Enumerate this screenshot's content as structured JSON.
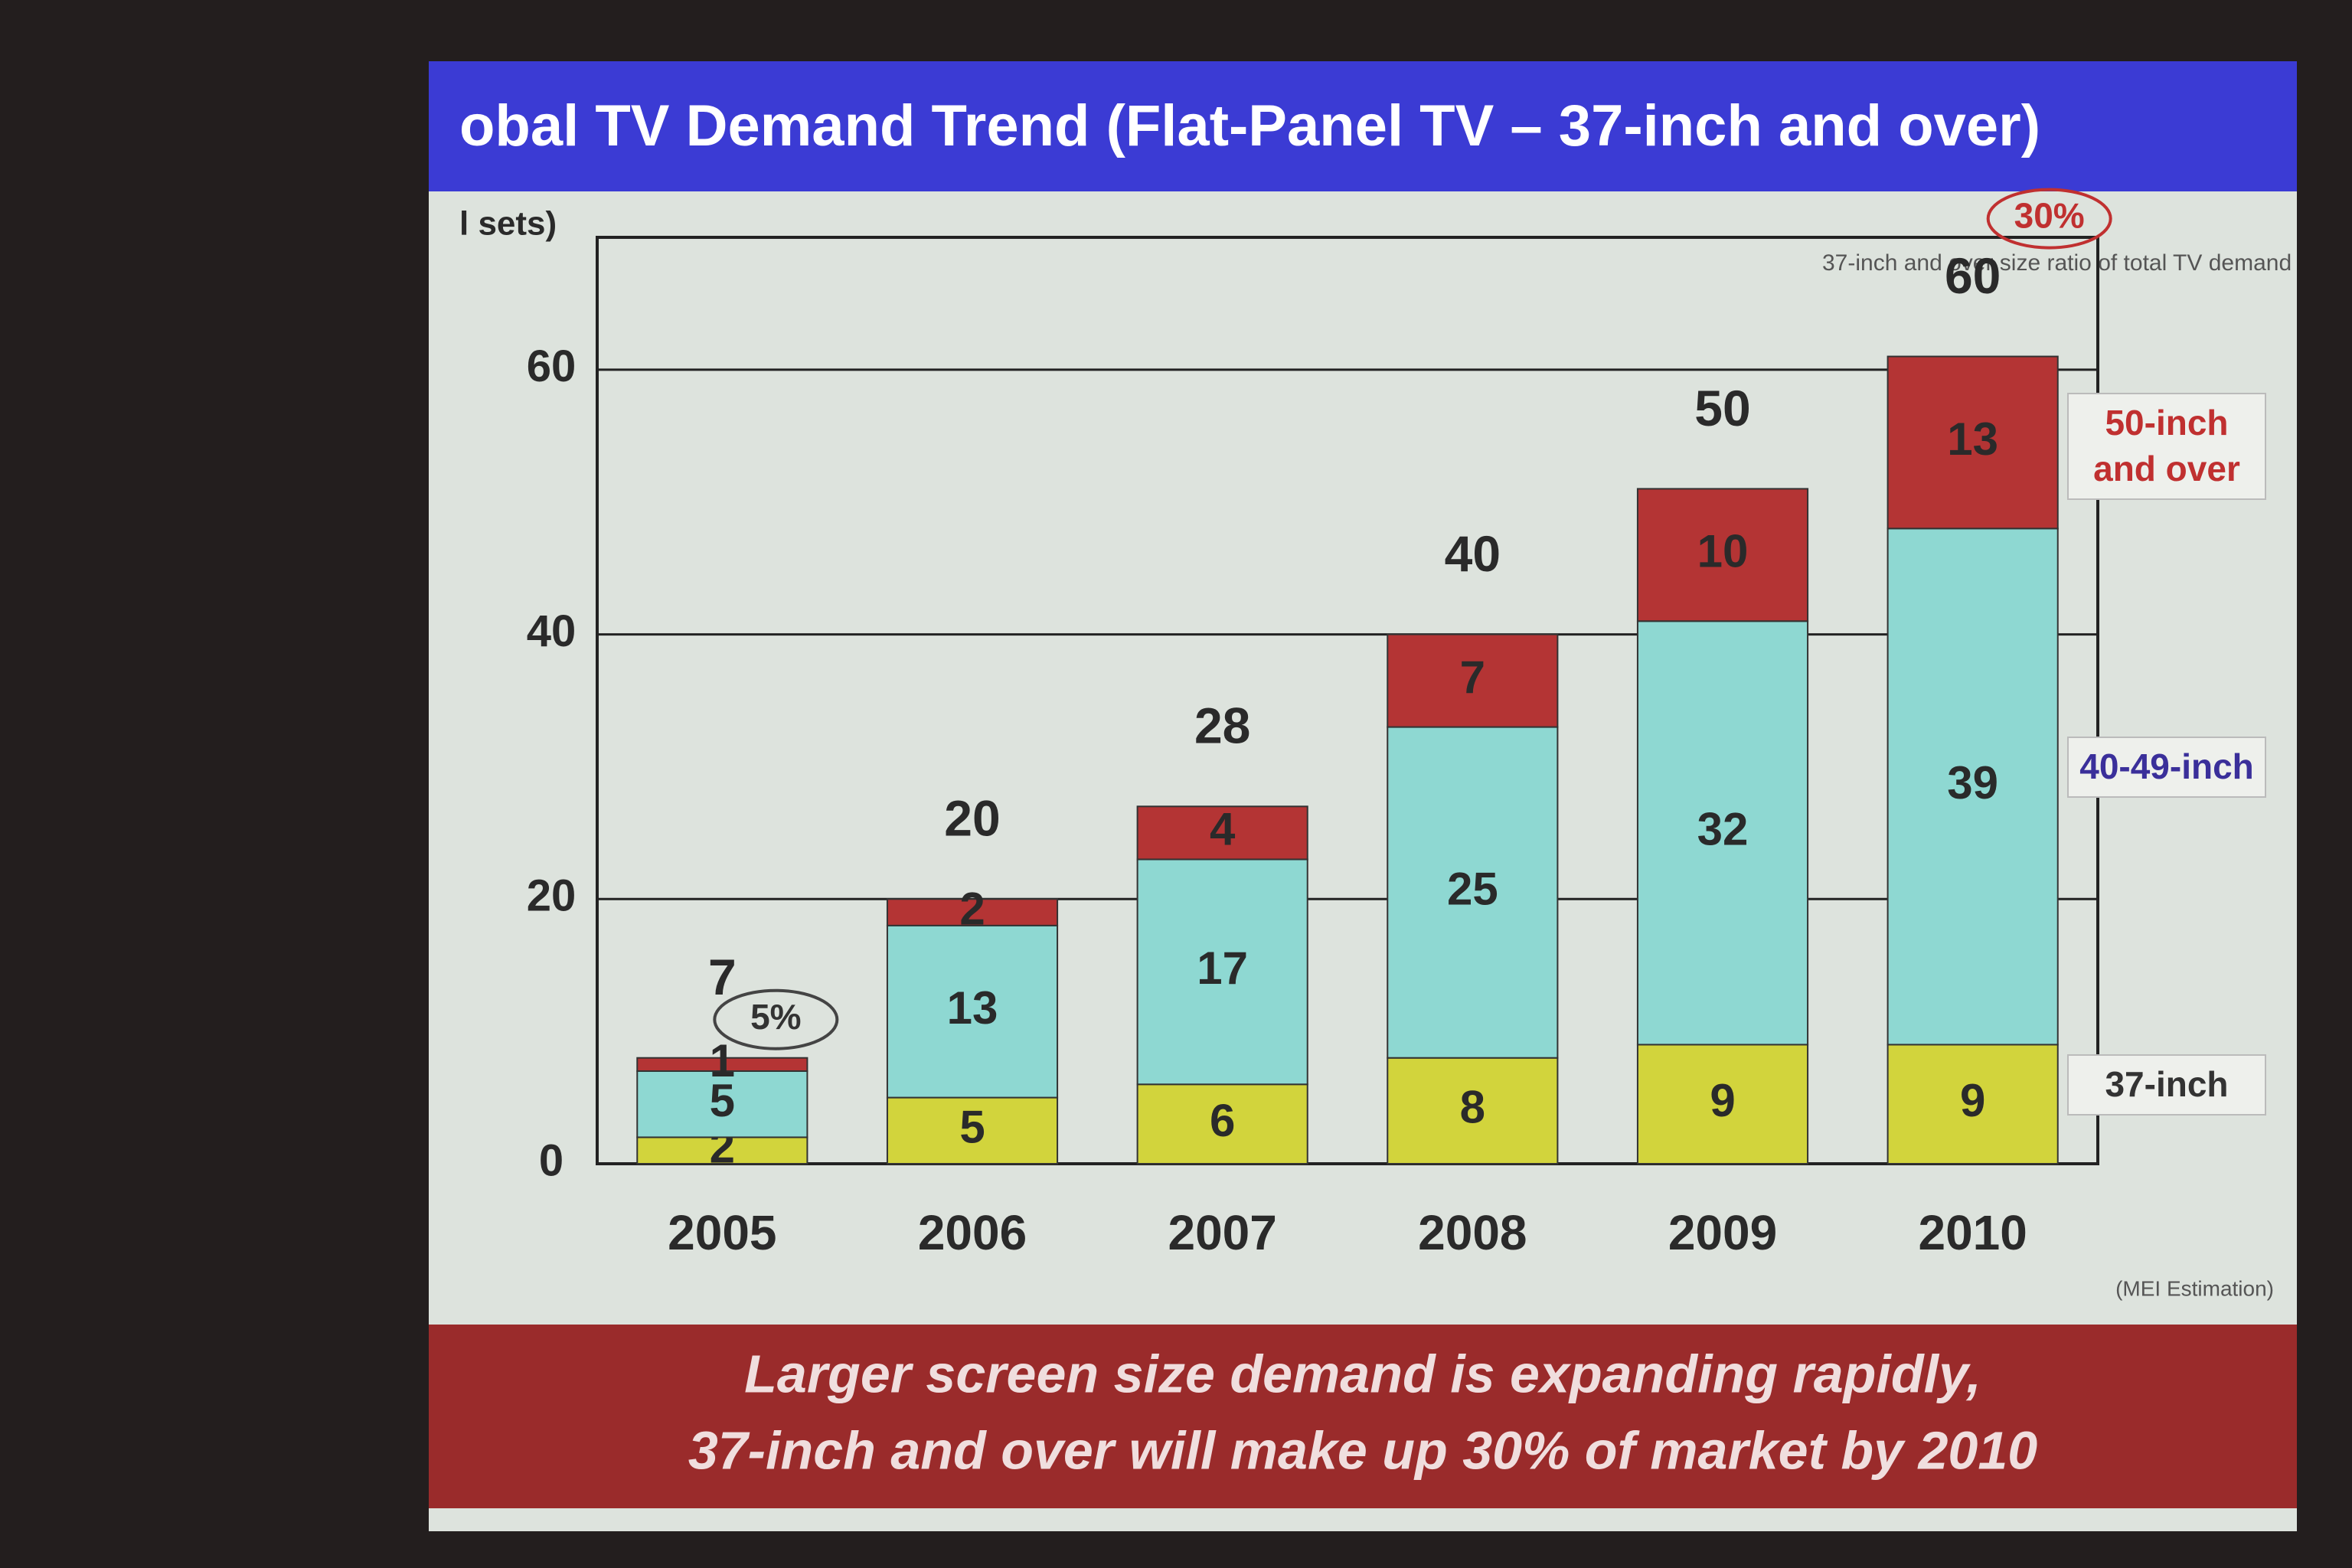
{
  "chart_data": {
    "type": "bar",
    "stacked": true,
    "title": "obal TV Demand Trend (Flat-Panel TV – 37-inch and over)",
    "ylabel": "l sets)",
    "note": "37-inch and over size ratio of total TV demand",
    "source": "(MEI Estimation)",
    "caption_lines": [
      "Larger screen size demand is expanding rapidly,",
      "37-inch and over will make up 30% of market by 2010"
    ],
    "categories": [
      "2005",
      "2006",
      "2007",
      "2008",
      "2009",
      "2010"
    ],
    "series": [
      {
        "name": "37-inch",
        "color": "#d2d43c",
        "values": [
          2,
          5,
          6,
          8,
          9,
          9
        ]
      },
      {
        "name": "40-49-inch",
        "color": "#8ed8d2",
        "values": [
          5,
          13,
          17,
          25,
          32,
          39
        ]
      },
      {
        "name": "50-inch and over",
        "color": "#b43434",
        "values": [
          1,
          2,
          4,
          7,
          10,
          13
        ]
      }
    ],
    "totals": [
      7,
      20,
      28,
      40,
      50,
      60
    ],
    "annotations": [
      {
        "text": "5%",
        "category": 0
      },
      {
        "text": "30%",
        "category": 5
      }
    ],
    "ylim": [
      0,
      70
    ],
    "yticks": [
      0,
      20,
      40,
      60
    ],
    "grid": true
  }
}
